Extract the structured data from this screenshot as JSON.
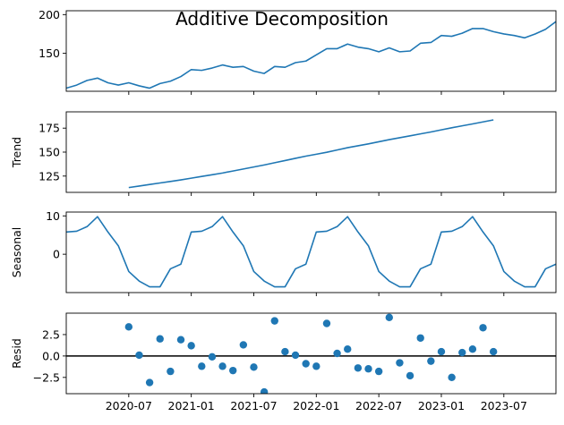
{
  "figure_title": "Additive Decomposition",
  "x_tick_labels": [
    "2020-07",
    "2021-01",
    "2021-07",
    "2022-01",
    "2022-07",
    "2023-01",
    "2023-07"
  ],
  "colors": {
    "series": "#1f77b4",
    "zero_line": "#000000",
    "axes": "#000000"
  },
  "chart_data": [
    {
      "type": "line",
      "panel": "observed",
      "ylabel": "",
      "x_start": "2020-01",
      "x_end": "2023-12",
      "yticks": [
        150,
        200
      ],
      "ylim": [
        101,
        205
      ],
      "x": [
        "2020-01",
        "2020-02",
        "2020-03",
        "2020-04",
        "2020-05",
        "2020-06",
        "2020-07",
        "2020-08",
        "2020-09",
        "2020-10",
        "2020-11",
        "2020-12",
        "2021-01",
        "2021-02",
        "2021-03",
        "2021-04",
        "2021-05",
        "2021-06",
        "2021-07",
        "2021-08",
        "2021-09",
        "2021-10",
        "2021-11",
        "2021-12",
        "2022-01",
        "2022-02",
        "2022-03",
        "2022-04",
        "2022-05",
        "2022-06",
        "2022-07",
        "2022-08",
        "2022-09",
        "2022-10",
        "2022-11",
        "2022-12",
        "2023-01",
        "2023-02",
        "2023-03",
        "2023-04",
        "2023-05",
        "2023-06",
        "2023-07",
        "2023-08",
        "2023-09",
        "2023-10",
        "2023-11",
        "2023-12"
      ],
      "values": [
        105,
        109,
        115,
        118,
        112,
        109,
        112,
        108,
        105,
        111,
        114,
        120,
        129,
        128,
        131,
        135,
        132,
        133,
        127,
        124,
        133,
        132,
        138,
        140,
        148,
        156,
        156,
        162,
        158,
        156,
        152,
        157,
        152,
        153,
        163,
        164,
        173,
        172,
        176,
        182,
        182,
        178,
        175,
        173,
        170,
        175,
        181,
        191
      ]
    },
    {
      "type": "line",
      "panel": "trend",
      "ylabel": "Trend",
      "yticks": [
        125,
        150,
        175
      ],
      "ylim": [
        108,
        192
      ],
      "x": [
        "2020-07",
        "2020-08",
        "2020-09",
        "2020-10",
        "2020-11",
        "2020-12",
        "2021-01",
        "2021-02",
        "2021-03",
        "2021-04",
        "2021-05",
        "2021-06",
        "2021-07",
        "2021-08",
        "2021-09",
        "2021-10",
        "2021-11",
        "2021-12",
        "2022-01",
        "2022-02",
        "2022-03",
        "2022-04",
        "2022-05",
        "2022-06",
        "2022-07",
        "2022-08",
        "2022-09",
        "2022-10",
        "2022-11",
        "2022-12",
        "2023-01",
        "2023-02",
        "2023-03",
        "2023-04",
        "2023-05",
        "2023-06"
      ],
      "values": [
        113,
        114.6,
        116.2,
        117.8,
        119.4,
        121,
        122.8,
        124.6,
        126.4,
        128.2,
        130.3,
        132.4,
        134.5,
        136.6,
        138.9,
        141.2,
        143.5,
        145.8,
        147.8,
        149.8,
        152.2,
        154.6,
        156.6,
        158.6,
        160.8,
        163,
        165,
        167,
        169,
        171,
        173.2,
        175.4,
        177.4,
        179.4,
        181.5,
        183.6
      ]
    },
    {
      "type": "line",
      "panel": "seasonal",
      "ylabel": "Seasonal",
      "yticks": [
        0,
        10
      ],
      "ylim": [
        -10,
        11
      ],
      "x_start": "2020-01",
      "values": [
        5.8,
        6,
        7.2,
        9.8,
        5.8,
        2.2,
        -4.5,
        -7,
        -8.5,
        -8.5,
        -3.8,
        -2.6,
        5.8,
        6,
        7.2,
        9.8,
        5.8,
        2.2,
        -4.5,
        -7,
        -8.5,
        -8.5,
        -3.8,
        -2.6,
        5.8,
        6,
        7.2,
        9.8,
        5.8,
        2.2,
        -4.5,
        -7,
        -8.5,
        -8.5,
        -3.8,
        -2.6,
        5.8,
        6,
        7.2,
        9.8,
        5.8,
        2.2,
        -4.5,
        -7,
        -8.5,
        -8.5,
        -3.8,
        -2.6
      ]
    },
    {
      "type": "scatter",
      "panel": "resid",
      "ylabel": "Resid",
      "yticks": [
        -2.5,
        0.0,
        2.5
      ],
      "ytick_labels": [
        "−2.5",
        "0.0",
        "2.5"
      ],
      "ylim": [
        -4.4,
        5
      ],
      "x_start": "2020-07",
      "values": [
        3.4,
        0.1,
        -3.1,
        2,
        -1.8,
        1.9,
        1.2,
        -1.2,
        -0.1,
        -1.2,
        -1.7,
        1.3,
        -1.3,
        -4.2,
        4.1,
        0.5,
        0.1,
        -0.9,
        -1.2,
        3.8,
        0.3,
        0.8,
        -1.4,
        -1.5,
        -1.8,
        4.5,
        -0.8,
        -2.3,
        2.1,
        -0.6,
        0.5,
        -2.5,
        0.4,
        0.8,
        3.3,
        0.5
      ]
    }
  ]
}
